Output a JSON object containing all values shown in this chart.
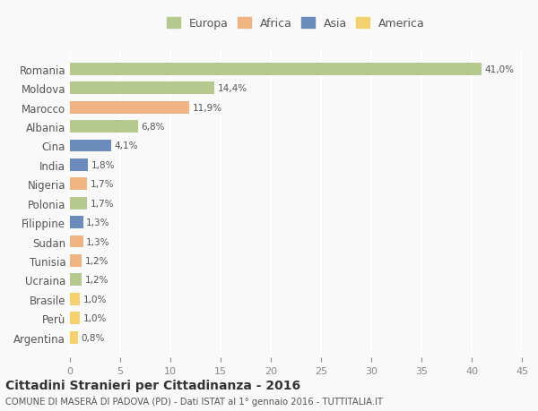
{
  "countries": [
    "Romania",
    "Moldova",
    "Marocco",
    "Albania",
    "Cina",
    "India",
    "Nigeria",
    "Polonia",
    "Filippine",
    "Sudan",
    "Tunisia",
    "Ucraina",
    "Brasile",
    "Perù",
    "Argentina"
  ],
  "values": [
    41.0,
    14.4,
    11.9,
    6.8,
    4.1,
    1.8,
    1.7,
    1.7,
    1.3,
    1.3,
    1.2,
    1.2,
    1.0,
    1.0,
    0.8
  ],
  "labels": [
    "41,0%",
    "14,4%",
    "11,9%",
    "6,8%",
    "4,1%",
    "1,8%",
    "1,7%",
    "1,7%",
    "1,3%",
    "1,3%",
    "1,2%",
    "1,2%",
    "1,0%",
    "1,0%",
    "0,8%"
  ],
  "colors": [
    "#b5c98e",
    "#b5c98e",
    "#f0b482",
    "#b5c98e",
    "#6b8cba",
    "#6b8cba",
    "#f0b482",
    "#b5c98e",
    "#6b8cba",
    "#f0b482",
    "#f0b482",
    "#b5c98e",
    "#f5d06e",
    "#f5d06e",
    "#f5d06e"
  ],
  "continent": [
    "Europa",
    "Europa",
    "Africa",
    "Europa",
    "Asia",
    "Asia",
    "Africa",
    "Europa",
    "Asia",
    "Africa",
    "Africa",
    "Europa",
    "America",
    "America",
    "America"
  ],
  "legend_labels": [
    "Europa",
    "Africa",
    "Asia",
    "America"
  ],
  "legend_colors": [
    "#b5c98e",
    "#f0b482",
    "#6b8cba",
    "#f5d06e"
  ],
  "title": "Cittadini Stranieri per Cittadinanza - 2016",
  "subtitle": "COMUNE DI MASERÀ DI PADOVA (PD) - Dati ISTAT al 1° gennaio 2016 - TUTTITALIA.IT",
  "xlim": [
    0,
    45
  ],
  "xticks": [
    0,
    5,
    10,
    15,
    20,
    25,
    30,
    35,
    40,
    45
  ],
  "bg_color": "#f9f9f9",
  "grid_color": "#ffffff",
  "bar_height": 0.65
}
